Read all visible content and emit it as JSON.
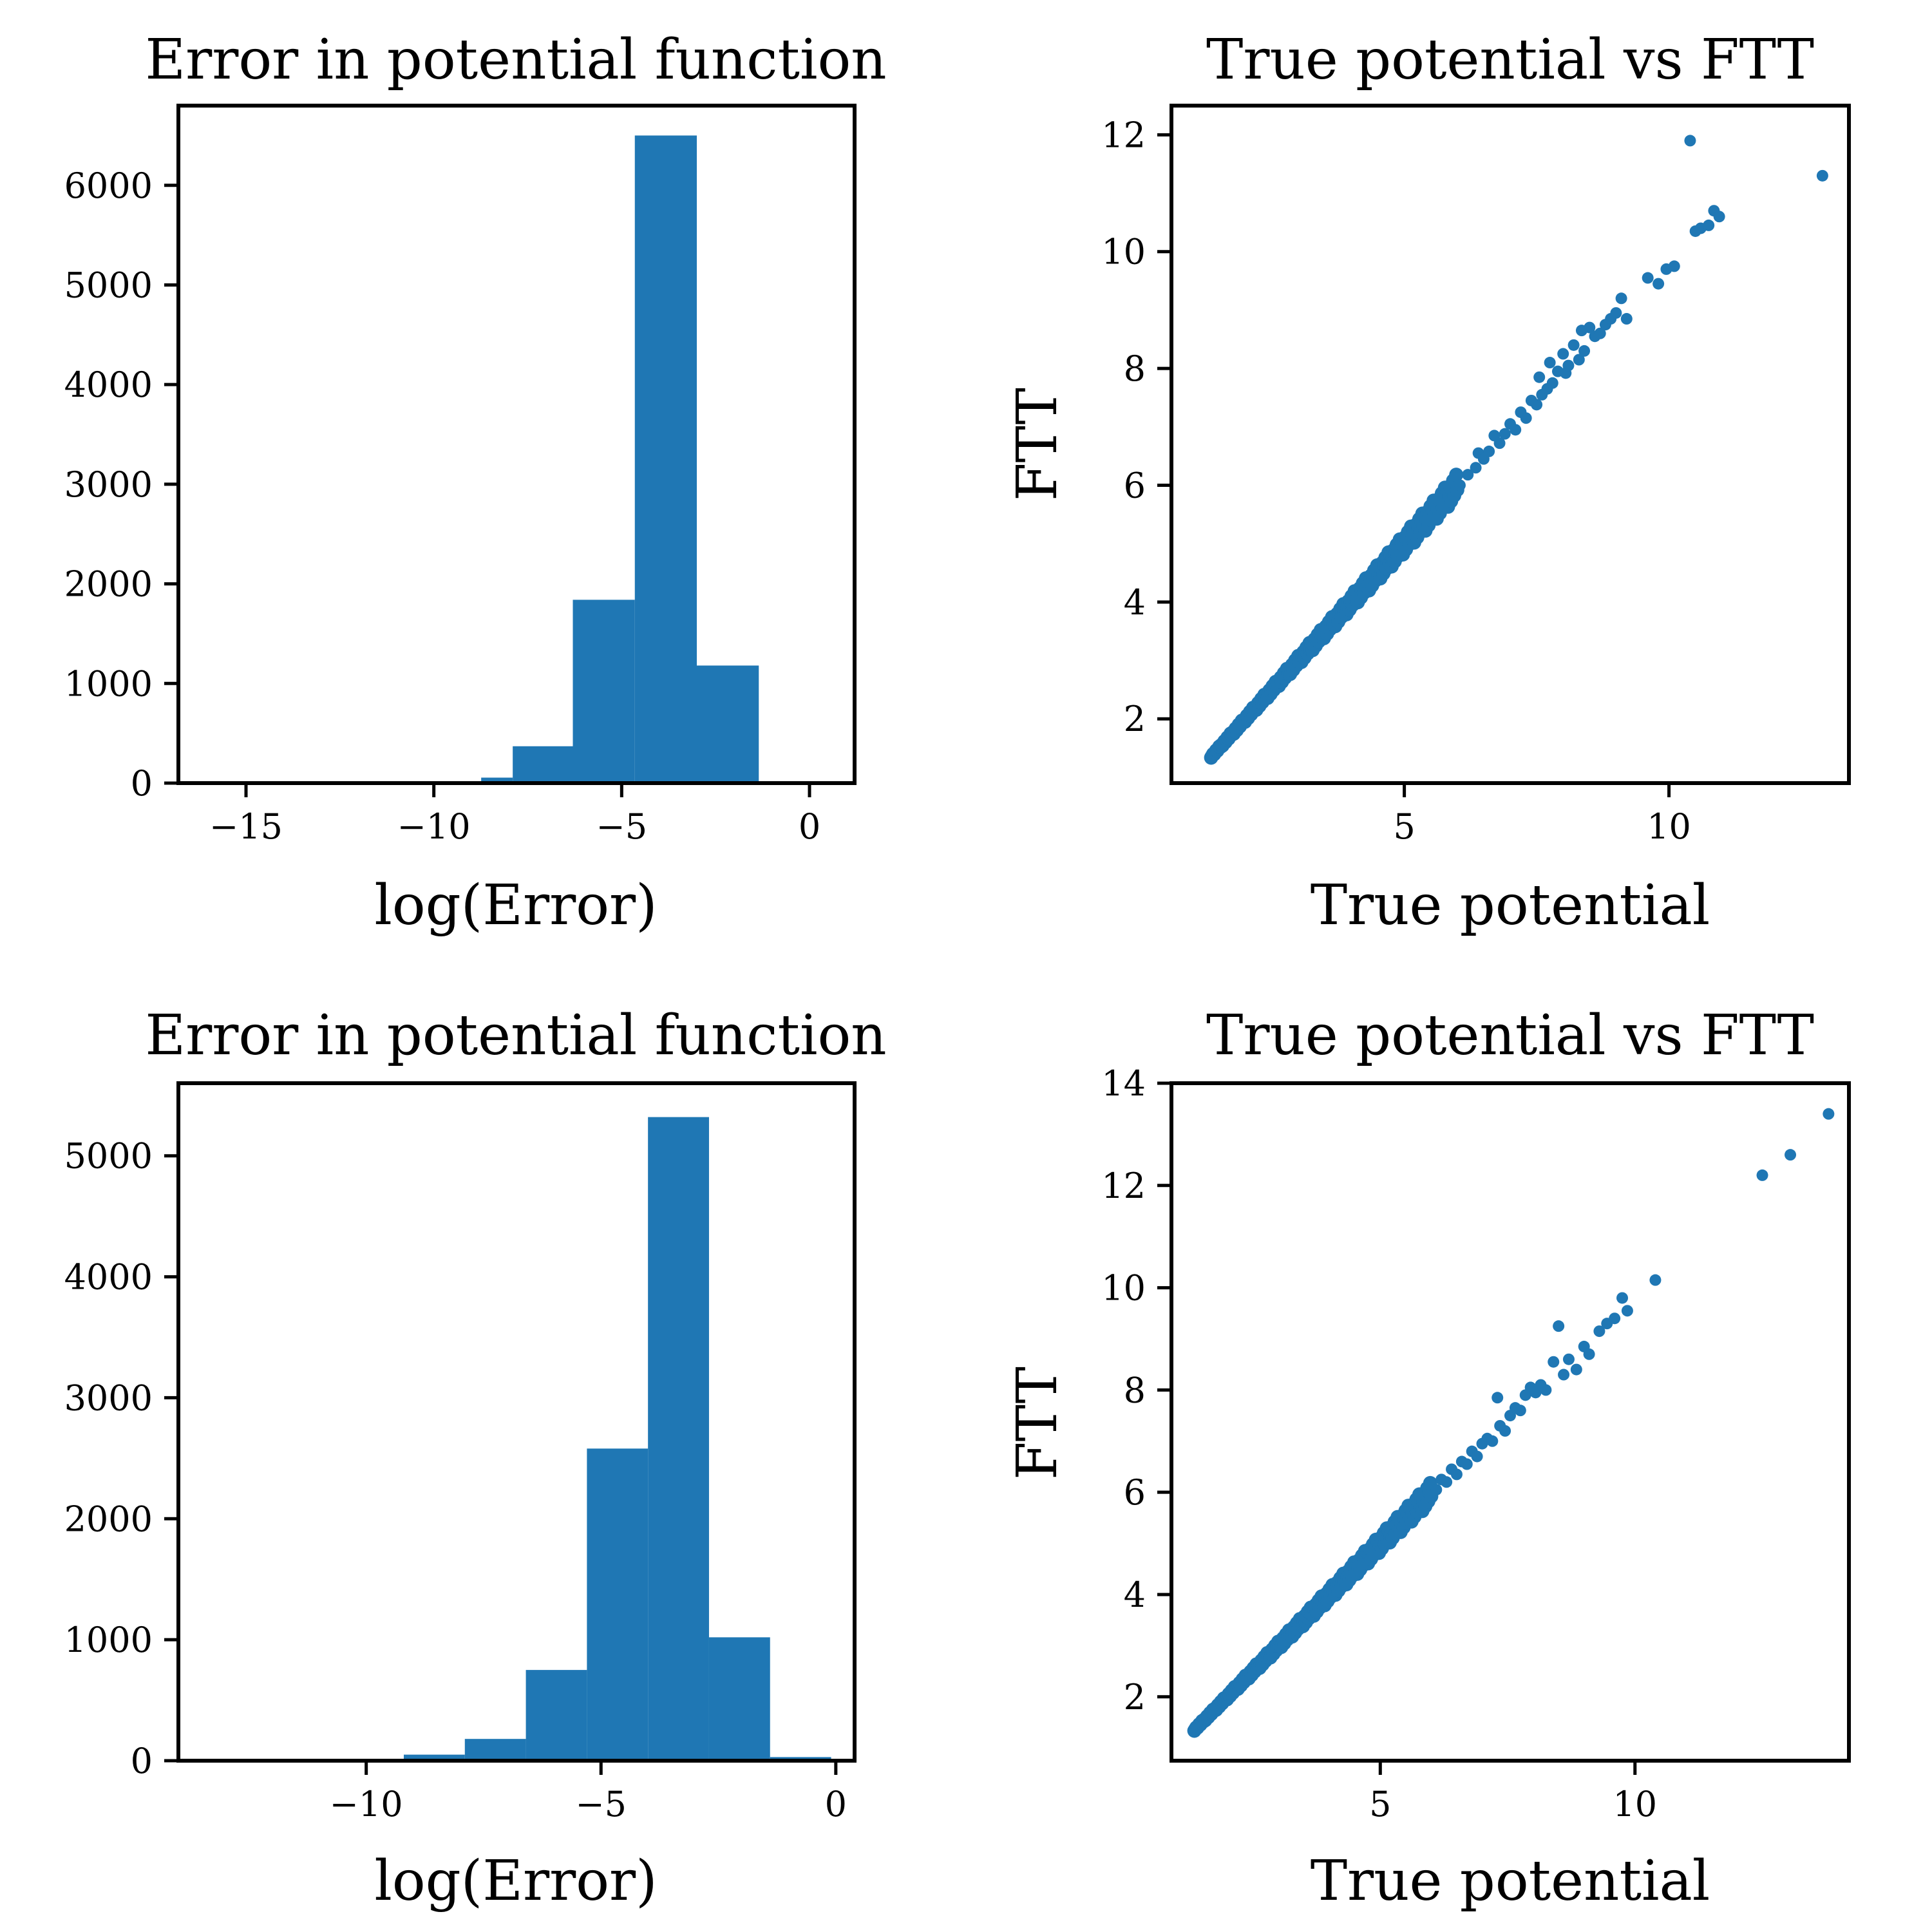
{
  "colors": {
    "bar": "#1f77b4",
    "point": "#1f77b4",
    "axis": "#000000"
  },
  "chart_data": [
    {
      "panel": "top-left",
      "type": "bar",
      "title": "Error in potential function",
      "xlabel": "log(Error)",
      "ylabel": "",
      "xlim": [
        -16.8,
        1.2
      ],
      "ylim": [
        0,
        6800
      ],
      "xticks": [
        -15,
        -10,
        -5,
        0
      ],
      "xtick_labels": [
        "−15",
        "−10",
        "−5",
        "0"
      ],
      "yticks": [
        0,
        1000,
        2000,
        3000,
        4000,
        5000,
        6000
      ],
      "ytick_labels": [
        "0",
        "1000",
        "2000",
        "3000",
        "4000",
        "5000",
        "6000"
      ],
      "bin_edges": [
        -15.3,
        -13.66,
        -12.02,
        -10.38,
        -8.74,
        -7.9,
        -6.3,
        -4.65,
        -3.0,
        -1.35,
        0.3
      ],
      "values": [
        1,
        1,
        2,
        6,
        55,
        370,
        1840,
        6500,
        1180,
        3
      ]
    },
    {
      "panel": "top-right",
      "type": "scatter",
      "title": "True potential vs FTT",
      "xlabel": "True potential",
      "ylabel": "FTT",
      "xlim": [
        0.6,
        13.4
      ],
      "ylim": [
        0.9,
        12.5
      ],
      "xticks": [
        5,
        10
      ],
      "xtick_labels": [
        "5",
        "10"
      ],
      "yticks": [
        2,
        4,
        6,
        8,
        10,
        12
      ],
      "ytick_labels": [
        "2",
        "4",
        "6",
        "8",
        "10",
        "12"
      ],
      "line_range": [
        1.35,
        6.0
      ],
      "points": [
        [
          6.05,
          6.0
        ],
        [
          6.2,
          6.18
        ],
        [
          6.35,
          6.3
        ],
        [
          6.4,
          6.55
        ],
        [
          6.5,
          6.45
        ],
        [
          6.6,
          6.58
        ],
        [
          6.7,
          6.85
        ],
        [
          6.8,
          6.72
        ],
        [
          6.9,
          6.88
        ],
        [
          7.0,
          7.05
        ],
        [
          7.1,
          6.95
        ],
        [
          7.2,
          7.25
        ],
        [
          7.3,
          7.15
        ],
        [
          7.4,
          7.45
        ],
        [
          7.5,
          7.38
        ],
        [
          7.55,
          7.85
        ],
        [
          7.6,
          7.55
        ],
        [
          7.7,
          7.65
        ],
        [
          7.75,
          8.1
        ],
        [
          7.8,
          7.75
        ],
        [
          7.9,
          7.95
        ],
        [
          8.0,
          8.25
        ],
        [
          8.05,
          7.92
        ],
        [
          8.1,
          8.05
        ],
        [
          8.2,
          8.4
        ],
        [
          8.3,
          8.15
        ],
        [
          8.35,
          8.65
        ],
        [
          8.4,
          8.3
        ],
        [
          8.5,
          8.7
        ],
        [
          8.6,
          8.55
        ],
        [
          8.7,
          8.6
        ],
        [
          8.8,
          8.75
        ],
        [
          8.9,
          8.85
        ],
        [
          9.0,
          8.95
        ],
        [
          9.1,
          9.2
        ],
        [
          9.2,
          8.85
        ],
        [
          9.6,
          9.55
        ],
        [
          9.8,
          9.45
        ],
        [
          9.95,
          9.7
        ],
        [
          10.1,
          9.75
        ],
        [
          10.4,
          11.9
        ],
        [
          10.5,
          10.35
        ],
        [
          10.6,
          10.4
        ],
        [
          10.75,
          10.45
        ],
        [
          10.85,
          10.7
        ],
        [
          10.95,
          10.6
        ],
        [
          12.9,
          11.3
        ]
      ]
    },
    {
      "panel": "bottom-left",
      "type": "bar",
      "title": "Error in potential function",
      "xlabel": "log(Error)",
      "ylabel": "",
      "xlim": [
        -14.0,
        0.4
      ],
      "ylim": [
        0,
        5600
      ],
      "xticks": [
        -10,
        -5,
        0
      ],
      "xtick_labels": [
        "−10",
        "−5",
        "0"
      ],
      "yticks": [
        0,
        1000,
        2000,
        3000,
        4000,
        5000
      ],
      "ytick_labels": [
        "0",
        "1000",
        "2000",
        "3000",
        "4000",
        "5000"
      ],
      "bin_edges": [
        -12.2,
        -10.5,
        -9.2,
        -7.9,
        -6.6,
        -5.3,
        -4.0,
        -2.7,
        -1.4,
        -0.1
      ],
      "values": [
        2,
        8,
        50,
        180,
        750,
        2580,
        5320,
        1020,
        30
      ]
    },
    {
      "panel": "bottom-right",
      "type": "scatter",
      "title": "True potential vs FTT",
      "xlabel": "True potential",
      "ylabel": "FTT",
      "xlim": [
        0.9,
        14.2
      ],
      "ylim": [
        0.75,
        14.0
      ],
      "xticks": [
        5,
        10
      ],
      "xtick_labels": [
        "5",
        "10"
      ],
      "yticks": [
        2,
        4,
        6,
        8,
        10,
        12,
        14
      ],
      "ytick_labels": [
        "2",
        "4",
        "6",
        "8",
        "10",
        "12",
        "14"
      ],
      "line_range": [
        1.35,
        6.0
      ],
      "points": [
        [
          6.1,
          6.05
        ],
        [
          6.2,
          6.25
        ],
        [
          6.3,
          6.2
        ],
        [
          6.4,
          6.45
        ],
        [
          6.5,
          6.35
        ],
        [
          6.6,
          6.6
        ],
        [
          6.7,
          6.55
        ],
        [
          6.8,
          6.8
        ],
        [
          6.9,
          6.7
        ],
        [
          7.0,
          6.95
        ],
        [
          7.1,
          7.05
        ],
        [
          7.2,
          7.0
        ],
        [
          7.3,
          7.85
        ],
        [
          7.35,
          7.3
        ],
        [
          7.45,
          7.2
        ],
        [
          7.55,
          7.5
        ],
        [
          7.65,
          7.65
        ],
        [
          7.75,
          7.6
        ],
        [
          7.85,
          7.9
        ],
        [
          7.95,
          8.05
        ],
        [
          8.05,
          7.95
        ],
        [
          8.15,
          8.1
        ],
        [
          8.25,
          8.0
        ],
        [
          8.4,
          8.55
        ],
        [
          8.5,
          9.25
        ],
        [
          8.6,
          8.3
        ],
        [
          8.7,
          8.6
        ],
        [
          8.85,
          8.4
        ],
        [
          9.0,
          8.85
        ],
        [
          9.1,
          8.7
        ],
        [
          9.3,
          9.15
        ],
        [
          9.45,
          9.3
        ],
        [
          9.6,
          9.4
        ],
        [
          9.75,
          9.8
        ],
        [
          9.85,
          9.55
        ],
        [
          10.4,
          10.15
        ],
        [
          12.5,
          12.2
        ],
        [
          13.05,
          12.6
        ],
        [
          13.8,
          13.4
        ]
      ]
    }
  ]
}
